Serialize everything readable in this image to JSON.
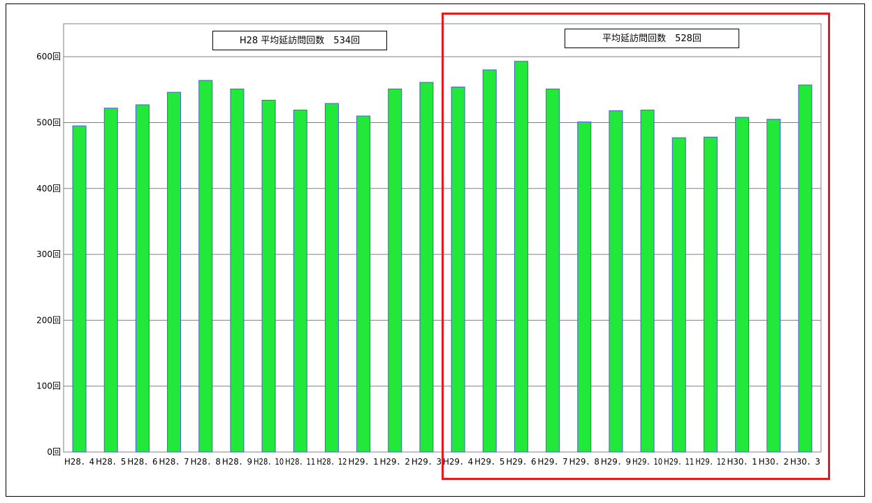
{
  "labels": {
    "h28_average": "H28 平均延訪問回数　534回",
    "current_average": "平均延訪問回数　528回"
  },
  "colors": {
    "bar_fill": "#22e83a",
    "bar_stroke": "#4a5bd8",
    "highlight_border": "#e8191c"
  },
  "chart_data": {
    "type": "bar",
    "title": "",
    "xlabel": "",
    "ylabel": "",
    "ylim": [
      0,
      650
    ],
    "yticks": [
      0,
      100,
      200,
      300,
      400,
      500,
      600
    ],
    "ytick_labels": [
      "0回",
      "100回",
      "200回",
      "300回",
      "400回",
      "500回",
      "600回"
    ],
    "grid": true,
    "categories": [
      "H28．4",
      "H28．5",
      "H28．6",
      "H28．7",
      "H28．8",
      "H28．9",
      "H28．10",
      "H28．11",
      "H28．12",
      "H29．1",
      "H29．2",
      "H29．3",
      "H29．4",
      "H29．5",
      "H29．6",
      "H29．7",
      "H29．8",
      "H29．9",
      "H29．10",
      "H29．11",
      "H29．12",
      "H30．1",
      "H30．2",
      "H30．3"
    ],
    "values": [
      495,
      522,
      527,
      546,
      564,
      551,
      534,
      519,
      529,
      510,
      551,
      561,
      554,
      580,
      593,
      551,
      501,
      518,
      519,
      477,
      478,
      508,
      505,
      557
    ]
  }
}
